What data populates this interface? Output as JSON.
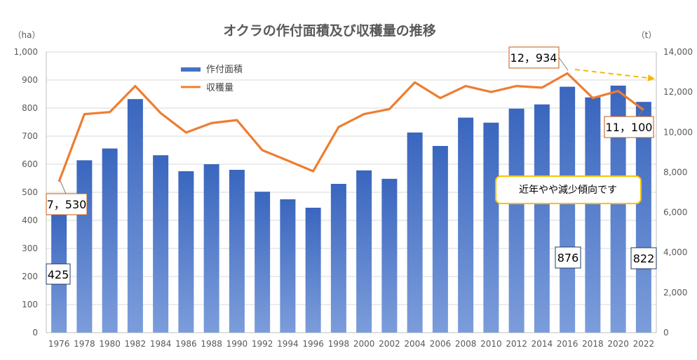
{
  "chart_data": {
    "type": "bar+line",
    "title": "オクラの作付面積及び収穫量の推移",
    "left_unit": "（ha）",
    "right_unit": "（t）",
    "categories": [
      "1976",
      "1978",
      "1980",
      "1982",
      "1984",
      "1986",
      "1988",
      "1990",
      "1992",
      "1994",
      "1996",
      "1998",
      "2000",
      "2002",
      "2004",
      "2006",
      "2008",
      "2010",
      "2012",
      "2014",
      "2016",
      "2018",
      "2020",
      "2022"
    ],
    "left_axis": {
      "min": 0,
      "max": 1000,
      "ticks": [
        "0",
        "100",
        "200",
        "300",
        "400",
        "500",
        "600",
        "700",
        "800",
        "900",
        "1,000"
      ]
    },
    "right_axis": {
      "min": 0,
      "max": 14000,
      "ticks": [
        "0",
        "2,000",
        "4,000",
        "6,000",
        "8,000",
        "10,000",
        "12,000",
        "14,000"
      ]
    },
    "series": [
      {
        "name": "作付面積",
        "type": "bar",
        "axis": "left",
        "color": "#4472C4",
        "values": [
          425,
          614,
          656,
          832,
          632,
          575,
          600,
          580,
          502,
          475,
          445,
          530,
          578,
          548,
          713,
          665,
          766,
          748,
          798,
          813,
          876,
          838,
          880,
          822
        ]
      },
      {
        "name": "収穫量",
        "type": "line",
        "axis": "right",
        "color": "#ED7D31",
        "values": [
          7530,
          10900,
          11000,
          12300,
          10950,
          9980,
          10450,
          10600,
          9100,
          8580,
          8050,
          10250,
          10900,
          11150,
          12480,
          11700,
          12300,
          12000,
          12300,
          12220,
          12934,
          11700,
          12050,
          11100
        ]
      }
    ],
    "grid": true,
    "legend": "top-left",
    "callouts": [
      {
        "label": "425",
        "series": "作付面積",
        "index": 0
      },
      {
        "label": "7，530",
        "series": "収穫量",
        "index": 0
      },
      {
        "label": "12，934",
        "series": "収穫量",
        "index": 20
      },
      {
        "label": "876",
        "series": "作付面積",
        "index": 20
      },
      {
        "label": "11，100",
        "series": "収穫量",
        "index": 23
      },
      {
        "label": "822",
        "series": "作付面積",
        "index": 23
      }
    ],
    "annotation": "近年やや減少傾向です"
  }
}
